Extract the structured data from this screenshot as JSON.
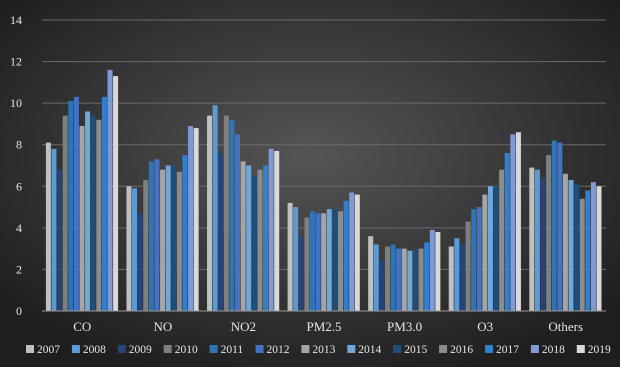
{
  "chart_data": {
    "type": "bar",
    "title": "",
    "xlabel": "",
    "ylabel": "",
    "ylim": [
      0,
      14
    ],
    "yticks": [
      0,
      2,
      4,
      6,
      8,
      10,
      12,
      14
    ],
    "grid": true,
    "legend_position": "bottom",
    "categories": [
      "CO",
      "NO",
      "NO2",
      "PM2.5",
      "PM3.0",
      "O3",
      "Others"
    ],
    "series": [
      {
        "name": "2007",
        "color": "#c0c0c0",
        "values": [
          8.1,
          6.0,
          9.4,
          5.2,
          3.6,
          3.1,
          6.9
        ]
      },
      {
        "name": "2008",
        "color": "#5b9bd5",
        "values": [
          7.8,
          5.9,
          9.9,
          5.0,
          3.2,
          3.5,
          6.8
        ]
      },
      {
        "name": "2009",
        "color": "#264478",
        "values": [
          6.8,
          4.7,
          7.6,
          3.6,
          2.4,
          3.2,
          6.4
        ]
      },
      {
        "name": "2010",
        "color": "#7f7f7f",
        "values": [
          9.4,
          6.3,
          9.4,
          4.5,
          3.1,
          4.3,
          7.5
        ]
      },
      {
        "name": "2011",
        "color": "#2e75b6",
        "values": [
          10.1,
          7.2,
          9.2,
          4.8,
          3.2,
          4.9,
          8.2
        ]
      },
      {
        "name": "2012",
        "color": "#4472c4",
        "values": [
          10.3,
          7.3,
          8.5,
          4.7,
          3.0,
          5.0,
          8.1
        ]
      },
      {
        "name": "2013",
        "color": "#a5a5a5",
        "values": [
          8.9,
          6.8,
          7.2,
          4.7,
          3.0,
          5.6,
          6.6
        ]
      },
      {
        "name": "2014",
        "color": "#6fa8dc",
        "values": [
          9.6,
          7.0,
          7.0,
          4.9,
          2.9,
          6.0,
          6.3
        ]
      },
      {
        "name": "2015",
        "color": "#1f4e79",
        "values": [
          9.4,
          7.0,
          6.5,
          4.9,
          3.0,
          6.0,
          6.1
        ]
      },
      {
        "name": "2016",
        "color": "#8c8c8c",
        "values": [
          9.2,
          6.7,
          6.8,
          4.8,
          3.0,
          6.8,
          5.4
        ]
      },
      {
        "name": "2017",
        "color": "#2f80d0",
        "values": [
          10.3,
          7.5,
          7.0,
          5.3,
          3.3,
          7.6,
          5.8
        ]
      },
      {
        "name": "2018",
        "color": "#7e9bd6",
        "values": [
          11.6,
          8.9,
          7.8,
          5.7,
          3.9,
          8.5,
          6.2
        ]
      },
      {
        "name": "2019",
        "color": "#d9d9d9",
        "values": [
          11.3,
          8.8,
          7.7,
          5.6,
          3.8,
          8.6,
          6.0
        ]
      }
    ]
  },
  "style": {
    "background_outer": "#1f1f1f",
    "background_inner": "#505050",
    "grid_color": "#6a6a6a",
    "axis_color": "#9a9a9a",
    "text_color": "#e6e6e6"
  }
}
